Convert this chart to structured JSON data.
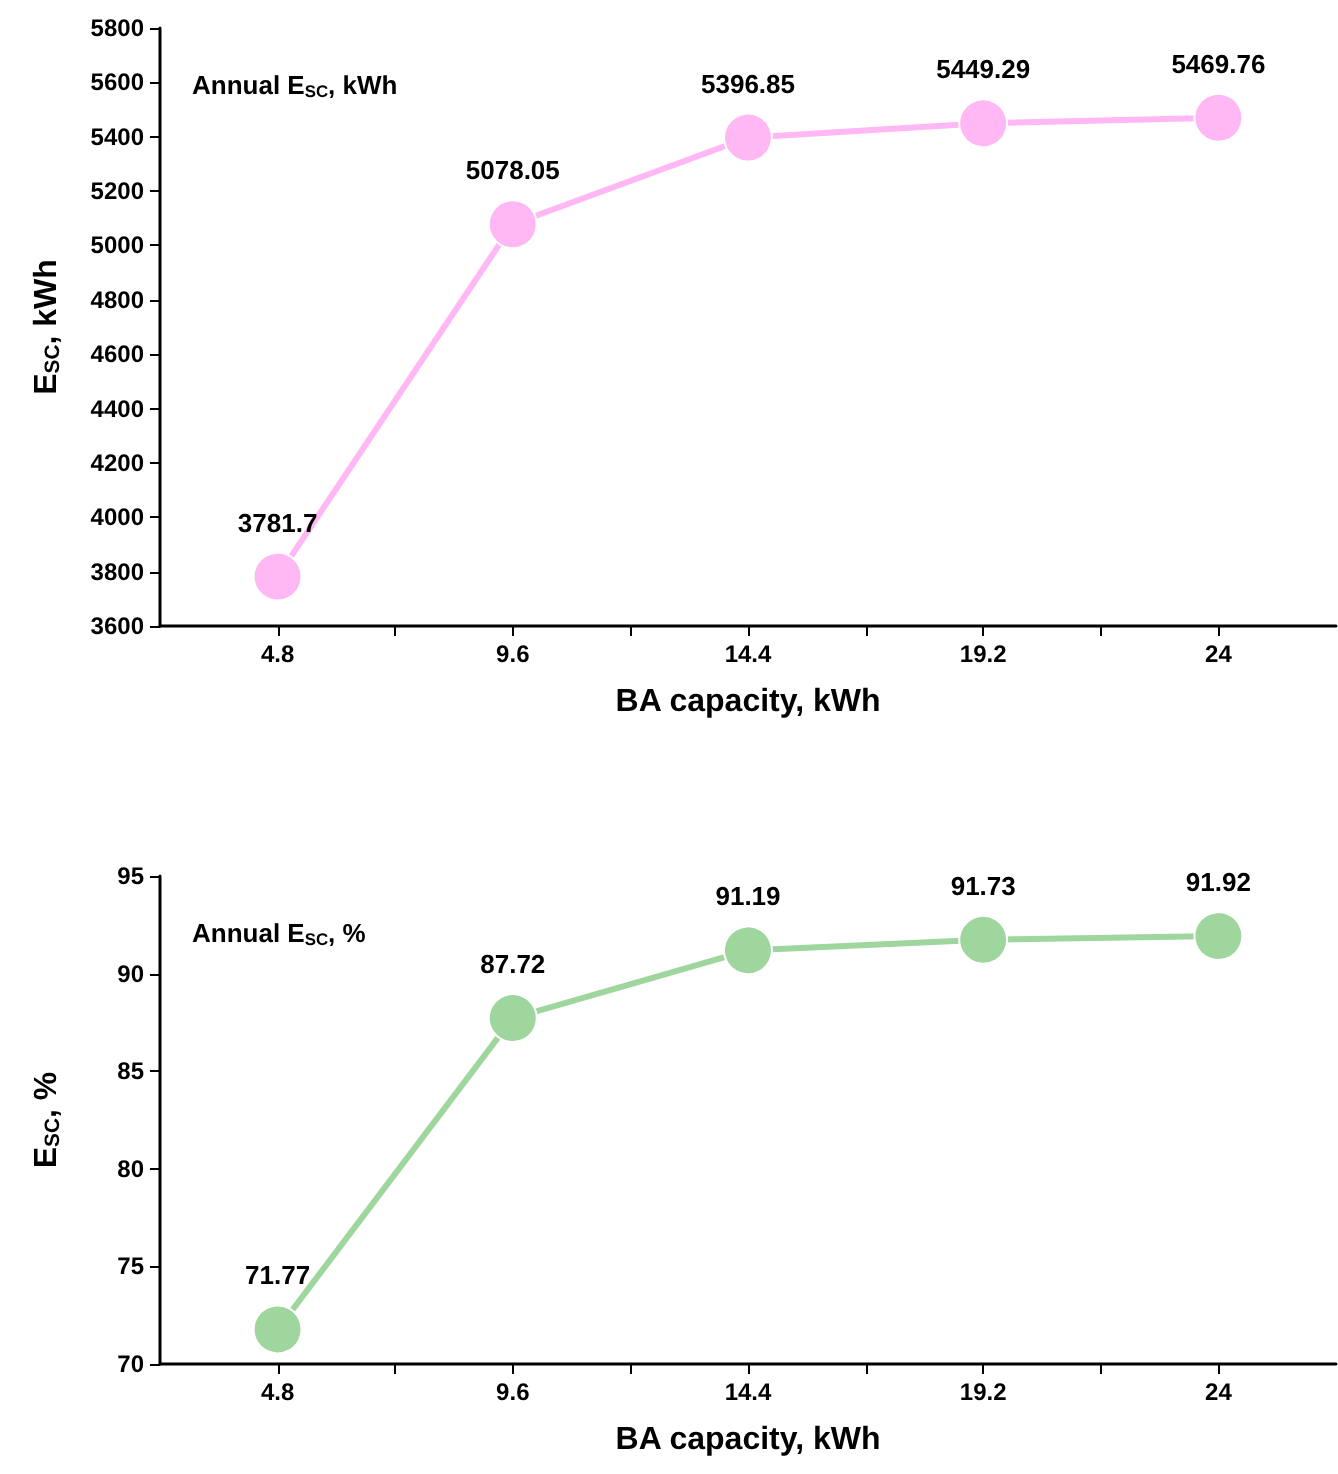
{
  "chart_data": [
    {
      "type": "line",
      "x": [
        4.8,
        9.6,
        14.4,
        19.2,
        24
      ],
      "series": [
        {
          "color": "#ffb8f4",
          "values": [
            3781.7,
            5078.05,
            5396.85,
            5449.29,
            5469.76
          ]
        }
      ],
      "xlabel": "BA capacity, kWh",
      "ylabel": "E$_{SC}$, kWh",
      "annotations": [
        "Annual E$_{SC}$, kWh"
      ],
      "xlim": [
        2.4,
        26.4
      ],
      "xticks": [
        4.8,
        {
          "value": 7.2,
          "label": null
        },
        9.6,
        {
          "value": 12,
          "label": null
        },
        14.4,
        {
          "value": 16.8,
          "label": null
        },
        19.2,
        {
          "value": 21.6,
          "label": null
        },
        24
      ],
      "ylim": [
        3600,
        5800
      ],
      "yticks": [
        3600,
        3800,
        4000,
        4200,
        4400,
        4600,
        4800,
        5000,
        5200,
        5400,
        5600,
        5800
      ],
      "data_labels": true,
      "marker": "circle",
      "line_style": "solid",
      "grid": false
    },
    {
      "type": "line",
      "x": [
        4.8,
        9.6,
        14.4,
        19.2,
        24
      ],
      "series": [
        {
          "color": "#9ed69e",
          "values": [
            71.77,
            87.72,
            91.19,
            91.73,
            91.92
          ]
        }
      ],
      "xlabel": "BA capacity, kWh",
      "ylabel": "E$_{SC}$, %",
      "annotations": [
        "Annual E$_{SC}$, %"
      ],
      "xlim": [
        2.4,
        26.4
      ],
      "xticks": [
        4.8,
        {
          "value": 7.2,
          "label": null
        },
        9.6,
        {
          "value": 12,
          "label": null
        },
        14.4,
        {
          "value": 16.8,
          "label": null
        },
        19.2,
        {
          "value": 21.6,
          "label": null
        },
        24
      ],
      "ylim": [
        70,
        95
      ],
      "yticks": [
        70,
        75,
        80,
        85,
        90,
        95
      ],
      "data_labels": true,
      "marker": "circle",
      "line_style": "solid",
      "grid": false
    }
  ]
}
